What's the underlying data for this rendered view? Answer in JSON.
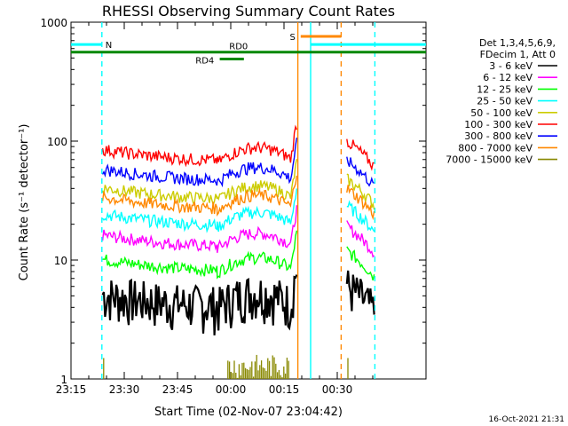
{
  "chart_data": {
    "type": "line",
    "title": "RHESSI Observing Summary Count Rates",
    "xlabel": "Start Time (02-Nov-07 23:04:42)",
    "ylabel": "Count Rate (s⁻¹ detector⁻¹)",
    "footer_timestamp": "16-Oct-2021 21:31",
    "y_scale": "log",
    "ylim": [
      1,
      1000
    ],
    "xlim_minutes": [
      0,
      61
    ],
    "y_ticks": [
      {
        "value": 1,
        "label": "1"
      },
      {
        "value": 10,
        "label": "10"
      },
      {
        "value": 100,
        "label": "100"
      },
      {
        "value": 1000,
        "label": "1000"
      }
    ],
    "x_ticks": [
      {
        "minutes": 10.3,
        "label": "23:15"
      },
      {
        "minutes": 25.3,
        "label": "23:30"
      },
      {
        "minutes": 40.3,
        "label": "23:45"
      },
      {
        "minutes": 55.3,
        "label": "00:00"
      },
      {
        "minutes": 70.3,
        "label": "00:15"
      },
      {
        "minutes": 85.3,
        "label": "00:30"
      }
    ],
    "legend_header": [
      "Det 1,3,4,5,6,9,",
      "FDecim 1, Att 0"
    ],
    "series": [
      {
        "name": "3 - 6 keV",
        "color": "#000000",
        "level": 3.8
      },
      {
        "name": "6 - 12 keV",
        "color": "#ff00ff",
        "level": 12
      },
      {
        "name": "12 - 25 keV",
        "color": "#00ff00",
        "level": 7.5
      },
      {
        "name": "25 - 50 keV",
        "color": "#00ffff",
        "level": 18
      },
      {
        "name": "50 - 100 keV",
        "color": "#cccc00",
        "level": 30
      },
      {
        "name": "100 - 300 keV",
        "color": "#ff0000",
        "level": 63
      },
      {
        "name": "300 - 800 keV",
        "color": "#0000ff",
        "level": 43
      },
      {
        "name": "800 - 7000 keV",
        "color": "#ff8800",
        "level": 25
      },
      {
        "name": "7000 - 15000 keV",
        "color": "#888800",
        "level": 1.5
      }
    ],
    "flag_bars": [
      {
        "label": "N",
        "color": "#00ffff"
      },
      {
        "label": "RD0",
        "color": "#008800"
      },
      {
        "label": "RD4",
        "color": "#008800"
      },
      {
        "label": "S",
        "color": "#ff8800"
      }
    ]
  }
}
